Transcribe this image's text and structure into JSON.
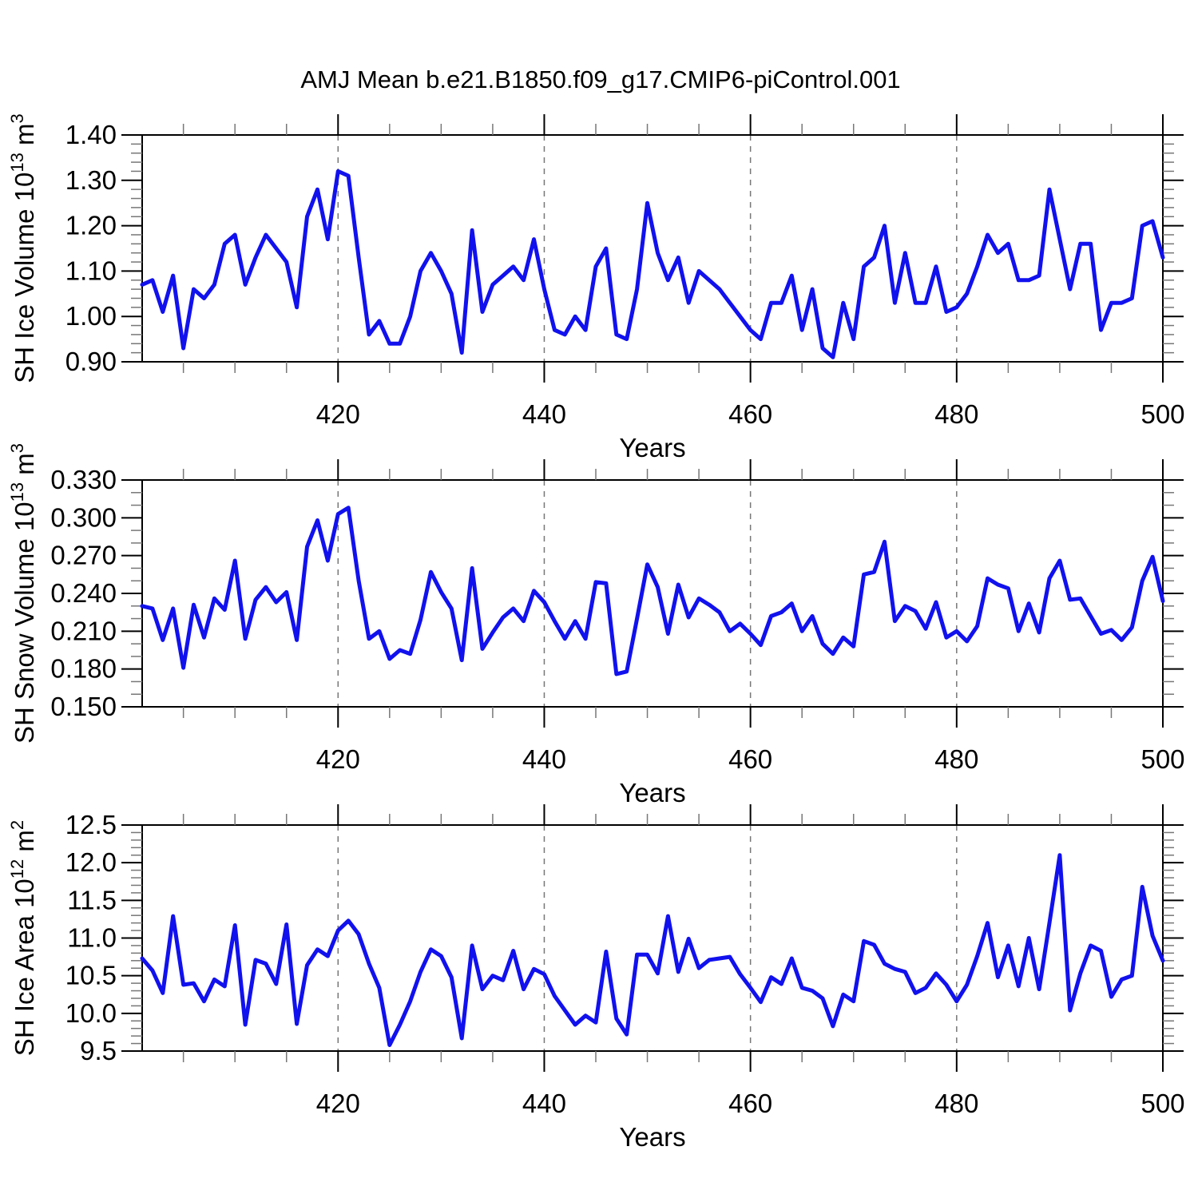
{
  "title": "AMJ Mean b.e21.B1850.f09_g17.CMIP6-piControl.001",
  "line_color": "#1111ee",
  "axis_color": "#000000",
  "minor_tick_color": "#777777",
  "gridline_color": "#777777",
  "chart_data": [
    {
      "type": "line",
      "name": "sh-ice-volume",
      "ylabel_prefix": "SH Ice Volume 10",
      "ylabel_sup1": "13",
      "ylabel_mid": " m",
      "ylabel_sup2": "3",
      "xlabel": "Years",
      "x": {
        "start": 401,
        "end": 500,
        "step": 1
      },
      "xlim": [
        401,
        500
      ],
      "xticks_major": [
        420,
        440,
        460,
        480,
        500
      ],
      "xtick_labels": [
        "420",
        "440",
        "460",
        "480",
        "500"
      ],
      "xminor_step": 5,
      "x_gridlines": [
        420,
        440,
        460,
        480
      ],
      "ylim": [
        0.9,
        1.4
      ],
      "yticks_major": [
        0.9,
        1.0,
        1.1,
        1.2,
        1.3,
        1.4
      ],
      "ytick_labels": [
        "0.90",
        "1.00",
        "1.10",
        "1.20",
        "1.30",
        "1.40"
      ],
      "yminor_step": 0.02,
      "grid": "x-dashed",
      "legend": "none",
      "values": [
        1.07,
        1.08,
        1.01,
        1.09,
        0.93,
        1.06,
        1.04,
        1.07,
        1.16,
        1.18,
        1.07,
        1.13,
        1.18,
        1.15,
        1.12,
        1.02,
        1.22,
        1.28,
        1.17,
        1.32,
        1.31,
        1.13,
        0.96,
        0.99,
        0.94,
        0.94,
        1.0,
        1.1,
        1.14,
        1.1,
        1.05,
        0.92,
        1.19,
        1.01,
        1.07,
        1.09,
        1.11,
        1.08,
        1.17,
        1.06,
        0.97,
        0.96,
        1.0,
        0.97,
        1.11,
        1.15,
        0.96,
        0.95,
        1.06,
        1.25,
        1.14,
        1.08,
        1.13,
        1.03,
        1.1,
        1.08,
        1.06,
        1.03,
        1.0,
        0.97,
        0.95,
        1.03,
        1.03,
        1.09,
        0.97,
        1.06,
        0.93,
        0.91,
        1.03,
        0.95,
        1.11,
        1.13,
        1.2,
        1.03,
        1.14,
        1.03,
        1.03,
        1.11,
        1.01,
        1.02,
        1.05,
        1.11,
        1.18,
        1.14,
        1.16,
        1.08,
        1.08,
        1.09,
        1.28,
        1.17,
        1.06,
        1.16,
        1.16,
        0.97,
        1.03,
        1.03,
        1.04,
        1.2,
        1.21,
        1.13
      ]
    },
    {
      "type": "line",
      "name": "sh-snow-volume",
      "ylabel_prefix": "SH Snow Volume 10",
      "ylabel_sup1": "13",
      "ylabel_mid": " m",
      "ylabel_sup2": "3",
      "xlabel": "Years",
      "x": {
        "start": 401,
        "end": 500,
        "step": 1
      },
      "xlim": [
        401,
        500
      ],
      "xticks_major": [
        420,
        440,
        460,
        480,
        500
      ],
      "xtick_labels": [
        "420",
        "440",
        "460",
        "480",
        "500"
      ],
      "xminor_step": 5,
      "x_gridlines": [
        420,
        440,
        460,
        480
      ],
      "ylim": [
        0.15,
        0.33
      ],
      "yticks_major": [
        0.15,
        0.18,
        0.21,
        0.24,
        0.27,
        0.3,
        0.33
      ],
      "ytick_labels": [
        "0.150",
        "0.180",
        "0.210",
        "0.240",
        "0.270",
        "0.300",
        "0.330"
      ],
      "yminor_step": 0.01,
      "grid": "x-dashed",
      "legend": "none",
      "values": [
        0.23,
        0.228,
        0.203,
        0.228,
        0.181,
        0.231,
        0.205,
        0.236,
        0.227,
        0.266,
        0.204,
        0.235,
        0.245,
        0.233,
        0.241,
        0.203,
        0.277,
        0.298,
        0.266,
        0.303,
        0.308,
        0.25,
        0.204,
        0.21,
        0.188,
        0.195,
        0.192,
        0.219,
        0.257,
        0.241,
        0.228,
        0.187,
        0.26,
        0.196,
        0.209,
        0.221,
        0.228,
        0.218,
        0.242,
        0.233,
        0.218,
        0.204,
        0.218,
        0.204,
        0.249,
        0.248,
        0.176,
        0.178,
        0.22,
        0.263,
        0.245,
        0.208,
        0.247,
        0.221,
        0.236,
        0.231,
        0.225,
        0.21,
        0.216,
        0.208,
        0.199,
        0.222,
        0.225,
        0.232,
        0.21,
        0.222,
        0.2,
        0.192,
        0.205,
        0.198,
        0.255,
        0.257,
        0.281,
        0.218,
        0.23,
        0.226,
        0.212,
        0.233,
        0.205,
        0.21,
        0.202,
        0.214,
        0.252,
        0.247,
        0.244,
        0.21,
        0.232,
        0.209,
        0.252,
        0.266,
        0.235,
        0.236,
        0.222,
        0.208,
        0.211,
        0.203,
        0.213,
        0.25,
        0.269,
        0.234
      ]
    },
    {
      "type": "line",
      "name": "sh-ice-area",
      "ylabel_prefix": "SH Ice Area 10",
      "ylabel_sup1": "12",
      "ylabel_mid": " m",
      "ylabel_sup2": "2",
      "xlabel": "Years",
      "x": {
        "start": 401,
        "end": 500,
        "step": 1
      },
      "xlim": [
        401,
        500
      ],
      "xticks_major": [
        420,
        440,
        460,
        480,
        500
      ],
      "xtick_labels": [
        "420",
        "440",
        "460",
        "480",
        "500"
      ],
      "xminor_step": 5,
      "x_gridlines": [
        420,
        440,
        460,
        480
      ],
      "ylim": [
        9.5,
        12.5
      ],
      "yticks_major": [
        9.5,
        10.0,
        10.5,
        11.0,
        11.5,
        12.0,
        12.5
      ],
      "ytick_labels": [
        "9.5",
        "10.0",
        "10.5",
        "11.0",
        "11.5",
        "12.0",
        "12.5"
      ],
      "yminor_step": 0.1,
      "grid": "x-dashed",
      "legend": "none",
      "values": [
        10.73,
        10.57,
        10.27,
        11.29,
        10.38,
        10.4,
        10.16,
        10.45,
        10.36,
        11.17,
        9.85,
        10.71,
        10.66,
        10.39,
        11.18,
        9.86,
        10.64,
        10.85,
        10.76,
        11.1,
        11.23,
        11.05,
        10.66,
        10.34,
        9.58,
        9.85,
        10.16,
        10.55,
        10.85,
        10.76,
        10.48,
        9.67,
        10.9,
        10.32,
        10.5,
        10.44,
        10.83,
        10.32,
        10.59,
        10.52,
        10.23,
        10.04,
        9.85,
        9.97,
        9.88,
        10.82,
        9.93,
        9.72,
        10.78,
        10.78,
        10.53,
        11.29,
        10.55,
        10.99,
        10.6,
        10.71,
        10.73,
        10.75,
        10.52,
        10.34,
        10.15,
        10.48,
        10.39,
        10.73,
        10.34,
        10.3,
        10.2,
        9.83,
        10.25,
        10.16,
        10.96,
        10.91,
        10.66,
        10.59,
        10.55,
        10.27,
        10.34,
        10.53,
        10.38,
        10.16,
        10.38,
        10.76,
        11.2,
        10.48,
        10.9,
        10.36,
        11.0,
        10.32,
        11.2,
        12.1,
        10.04,
        10.53,
        10.9,
        10.83,
        10.22,
        10.45,
        10.5,
        11.68,
        11.03,
        10.7
      ]
    }
  ]
}
